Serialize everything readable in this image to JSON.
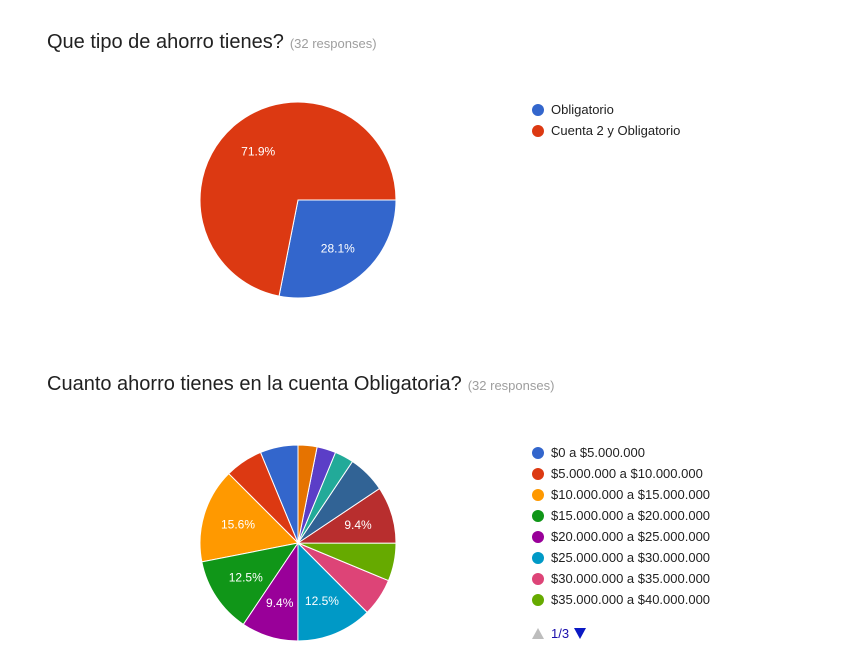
{
  "questions": [
    {
      "title": "Que tipo de ahorro tienes?",
      "responses": "(32 responses)"
    },
    {
      "title": "Cuanto ahorro tienes en la cuenta Obligatoria?",
      "responses": "(32 responses)",
      "legend_pager": {
        "page": "1/3",
        "up_icon": "triangle-up-icon",
        "down_icon": "triangle-down-icon"
      }
    }
  ],
  "chart_data": [
    {
      "type": "pie",
      "title": "Que tipo de ahorro tienes?",
      "legend_position": "right",
      "slices": [
        {
          "label": "Obligatorio",
          "value": 28.1,
          "display": "28.1%",
          "color": "#3366cc"
        },
        {
          "label": "Cuenta 2 y Obligatorio",
          "value": 71.9,
          "display": "71.9%",
          "color": "#dc3912"
        }
      ]
    },
    {
      "type": "pie",
      "title": "Cuanto ahorro tienes en la cuenta Obligatoria?",
      "legend_position": "right",
      "slices": [
        {
          "label": "$0 a $5.000.000",
          "value": 6.25,
          "display": "",
          "color": "#3366cc"
        },
        {
          "label": "$5.000.000 a $10.000.000",
          "value": 6.25,
          "display": "",
          "color": "#dc3912"
        },
        {
          "label": "$10.000.000 a $15.000.000",
          "value": 15.6,
          "display": "15.6%",
          "color": "#ff9900"
        },
        {
          "label": "$15.000.000 a $20.000.000",
          "value": 12.5,
          "display": "12.5%",
          "color": "#109618"
        },
        {
          "label": "$20.000.000 a $25.000.000",
          "value": 9.4,
          "display": "9.4%",
          "color": "#990099"
        },
        {
          "label": "$25.000.000 a $30.000.000",
          "value": 12.5,
          "display": "12.5%",
          "color": "#0099c6"
        },
        {
          "label": "$30.000.000 a $35.000.000",
          "value": 6.25,
          "display": "",
          "color": "#dd4477"
        },
        {
          "label": "$35.000.000 a $40.000.000",
          "value": 6.25,
          "display": "",
          "color": "#66aa00"
        },
        {
          "label": "",
          "value": 9.4,
          "display": "9.4%",
          "color": "#b82e2e"
        },
        {
          "label": "",
          "value": 6.25,
          "display": "",
          "color": "#316395"
        },
        {
          "label": "",
          "value": 3.125,
          "display": "",
          "color": "#22aa99"
        },
        {
          "label": "",
          "value": 3.125,
          "display": "",
          "color": "#5b3ec7"
        },
        {
          "label": "",
          "value": 3.125,
          "display": "",
          "color": "#e67300"
        }
      ],
      "legend_visible_count": 8
    }
  ]
}
